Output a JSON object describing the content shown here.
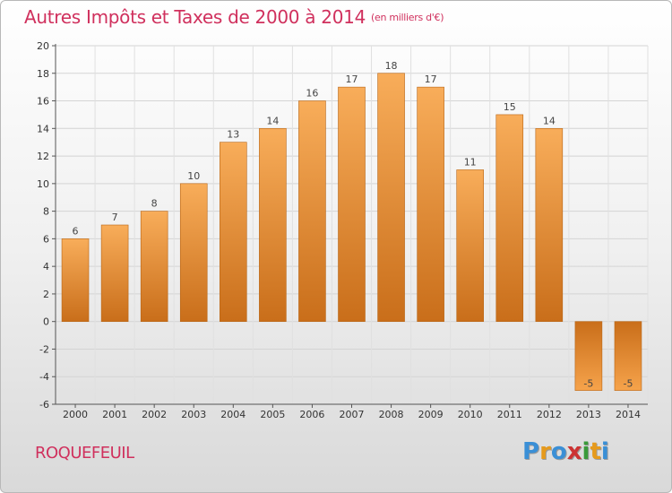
{
  "title": "Autres Impôts et Taxes de 2000 à 2014",
  "subtitle": "(en milliers d'€)",
  "place": "ROQUEFEUIL",
  "logo": {
    "letters": [
      "P",
      "r",
      "o",
      "x",
      "i",
      "t",
      "i"
    ],
    "colors": [
      "#3a8fd6",
      "#e69a1c",
      "#3a8fd6",
      "#cc3333",
      "#3a9a3a",
      "#e69a1c",
      "#3a8fd6"
    ]
  },
  "colors": {
    "bar_light": "#f6a34b",
    "bar_dark": "#c96e1a",
    "accent": "#d0305d"
  },
  "chart_data": {
    "type": "bar",
    "categories": [
      "2000",
      "2001",
      "2002",
      "2003",
      "2004",
      "2005",
      "2006",
      "2007",
      "2008",
      "2009",
      "2010",
      "2011",
      "2012",
      "2013",
      "2014"
    ],
    "values": [
      6,
      7,
      8,
      10,
      13,
      14,
      16,
      17,
      18,
      17,
      11,
      15,
      14,
      -5,
      -5
    ],
    "data_labels": [
      "6",
      "7",
      "8",
      "10",
      "13",
      "14",
      "16",
      "17",
      "18",
      "17",
      "11",
      "15",
      "14",
      "-5",
      "-5"
    ],
    "yticks": [
      20,
      18,
      16,
      14,
      12,
      10,
      8,
      6,
      4,
      2,
      0,
      -2,
      -4,
      -6
    ],
    "ylim": [
      -6,
      20
    ],
    "grid": true
  }
}
